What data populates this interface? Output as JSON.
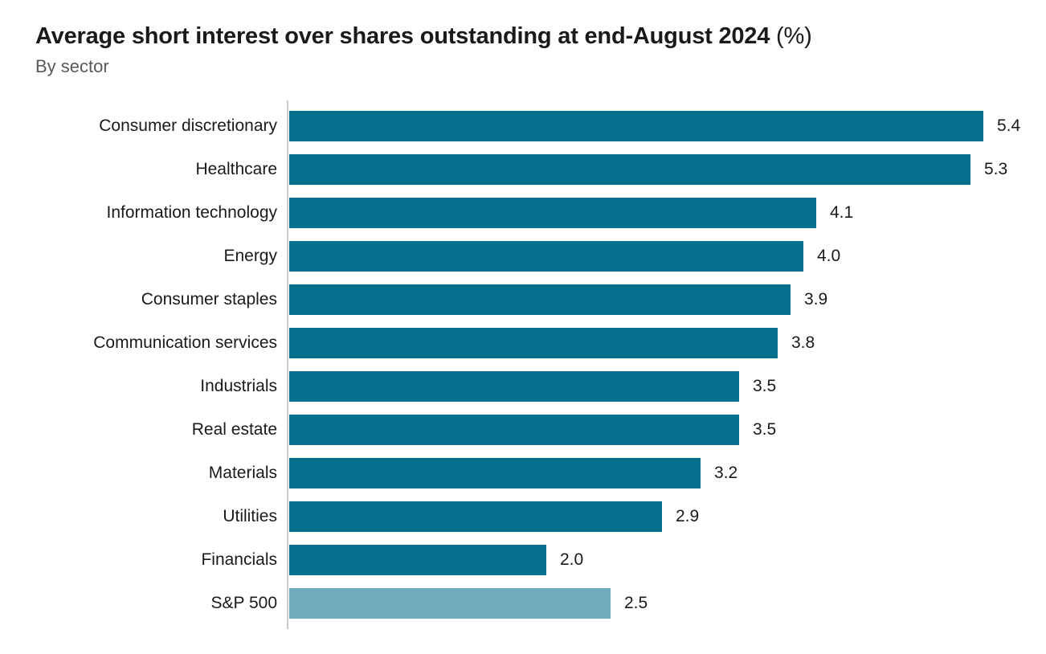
{
  "header": {
    "title_main": "Average short interest over shares outstanding at end-August 2024",
    "title_suffix": " (%)",
    "subtitle": "By sector"
  },
  "chart_data": {
    "type": "bar",
    "orientation": "horizontal",
    "title": "Average short interest over shares outstanding at end-August 2024 (%)",
    "subtitle": "By sector",
    "categories": [
      "Consumer discretionary",
      "Healthcare",
      "Information technology",
      "Energy",
      "Consumer staples",
      "Communication services",
      "Industrials",
      "Real estate",
      "Materials",
      "Utilities",
      "Financials",
      "S&P 500"
    ],
    "values": [
      5.4,
      5.3,
      4.1,
      4.0,
      3.9,
      3.8,
      3.5,
      3.5,
      3.2,
      2.9,
      2.0,
      2.5
    ],
    "value_labels": [
      "5.4",
      "5.3",
      "4.1",
      "4.0",
      "3.9",
      "3.8",
      "3.5",
      "3.5",
      "3.2",
      "2.9",
      "2.0",
      "2.5"
    ],
    "xlabel": "",
    "ylabel": "",
    "xlim": [
      0,
      5.9
    ],
    "grid": false,
    "legend": false,
    "data_labels": true,
    "bar_color": "#07708E",
    "highlight_color": "#6FACBE",
    "highlight_index": 11,
    "axis_line_color": "#c9cac9"
  }
}
